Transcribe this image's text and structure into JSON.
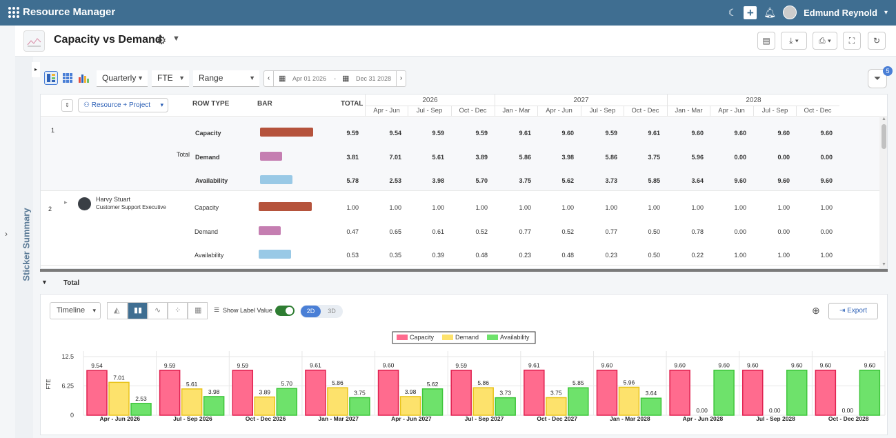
{
  "app": {
    "title": "Resource Manager",
    "user_name": "Edmund Reynold"
  },
  "header": {
    "page_title": "Capacity vs Demand"
  },
  "sticker": {
    "label": "Sticker Summary"
  },
  "toolbar": {
    "period": "Quarterly",
    "unit": "FTE",
    "range_mode": "Range",
    "date_from": "Apr 01 2026",
    "date_sep": "-",
    "date_to": "Dec 31 2028",
    "filter_count": "5"
  },
  "table": {
    "group_by": "Resource + Project",
    "col_row_type": "ROW TYPE",
    "col_bar": "BAR",
    "col_total": "TOTAL",
    "years": [
      "2026",
      "2027",
      "2028"
    ],
    "quarters": [
      "Apr - Jun",
      "Jul - Sep",
      "Oct - Dec",
      "Jan - Mar",
      "Apr - Jun",
      "Jul - Sep",
      "Oct - Dec",
      "Jan - Mar",
      "Apr - Jun",
      "Jul - Sep",
      "Oct - Dec"
    ],
    "rows": [
      {
        "index": "1",
        "label": "Total",
        "bold": true,
        "lines": [
          {
            "type": "Capacity",
            "total": "9.59",
            "values": [
              "9.54",
              "9.59",
              "9.59",
              "9.61",
              "9.60",
              "9.59",
              "9.61",
              "9.60",
              "9.60",
              "9.60",
              "9.60"
            ]
          },
          {
            "type": "Demand",
            "total": "3.81",
            "values": [
              "7.01",
              "5.61",
              "3.89",
              "5.86",
              "3.98",
              "5.86",
              "3.75",
              "5.96",
              "0.00",
              "0.00",
              "0.00"
            ]
          },
          {
            "type": "Availability",
            "total": "5.78",
            "values": [
              "2.53",
              "3.98",
              "5.70",
              "3.75",
              "5.62",
              "3.73",
              "5.85",
              "3.64",
              "9.60",
              "9.60",
              "9.60"
            ]
          }
        ]
      },
      {
        "index": "2",
        "name": "Harvy Stuart",
        "role": "Customer Support Executive",
        "bold": false,
        "lines": [
          {
            "type": "Capacity",
            "total": "1.00",
            "values": [
              "1.00",
              "1.00",
              "1.00",
              "1.00",
              "1.00",
              "1.00",
              "1.00",
              "1.00",
              "1.00",
              "1.00",
              "1.00"
            ]
          },
          {
            "type": "Demand",
            "total": "0.47",
            "values": [
              "0.65",
              "0.61",
              "0.52",
              "0.77",
              "0.52",
              "0.77",
              "0.50",
              "0.78",
              "0.00",
              "0.00",
              "0.00"
            ]
          },
          {
            "type": "Availability",
            "total": "0.53",
            "values": [
              "0.35",
              "0.39",
              "0.48",
              "0.23",
              "0.48",
              "0.23",
              "0.50",
              "0.22",
              "1.00",
              "1.00",
              "1.00"
            ]
          }
        ]
      }
    ]
  },
  "total_section": {
    "label": "Total"
  },
  "chart_controls": {
    "view": "Timeline",
    "show_label": "Show Label Value",
    "mode_2d": "2D",
    "mode_3d": "3D",
    "export": "Export"
  },
  "colors": {
    "capacity": "#ff6b8e",
    "demand": "#fde26c",
    "availability": "#6ee26b",
    "accent": "#3f6e91"
  },
  "chart_data": {
    "type": "bar",
    "ylabel": "FTE",
    "ylim": [
      0,
      12.5
    ],
    "yticks": [
      "0",
      "6.25",
      "12.5"
    ],
    "categories": [
      "Apr - Jun 2026",
      "Jul - Sep 2026",
      "Oct - Dec 2026",
      "Jan - Mar 2027",
      "Apr - Jun 2027",
      "Jul - Sep 2027",
      "Oct - Dec 2027",
      "Jan - Mar 2028",
      "Apr - Jun 2028",
      "Jul - Sep 2028",
      "Oct - Dec 2028"
    ],
    "series": [
      {
        "name": "Capacity",
        "values": [
          9.54,
          9.59,
          9.59,
          9.61,
          9.6,
          9.59,
          9.61,
          9.6,
          9.6,
          9.6,
          9.6
        ],
        "labels": [
          "9.54",
          "9.59",
          "9.59",
          "9.61",
          "9.60",
          "9.59",
          "9.61",
          "9.60",
          "9.60",
          "9.60",
          "9.60"
        ]
      },
      {
        "name": "Demand",
        "values": [
          7.01,
          5.61,
          3.89,
          5.86,
          3.98,
          5.86,
          3.75,
          5.96,
          0,
          0,
          0
        ],
        "labels": [
          "7.01",
          "5.61",
          "3.89",
          "5.86",
          "3.98",
          "5.86",
          "3.75",
          "5.96",
          "0.00",
          "0.00",
          "0.00"
        ]
      },
      {
        "name": "Availability",
        "values": [
          2.53,
          3.98,
          5.7,
          3.75,
          5.62,
          3.73,
          5.85,
          3.64,
          9.6,
          9.6,
          9.6
        ],
        "labels": [
          "2.53",
          "3.98",
          "5.70",
          "3.75",
          "5.62",
          "3.73",
          "5.85",
          "3.64",
          "9.60",
          "9.60",
          "9.60"
        ]
      }
    ],
    "legend": "top-center",
    "grid": true
  }
}
